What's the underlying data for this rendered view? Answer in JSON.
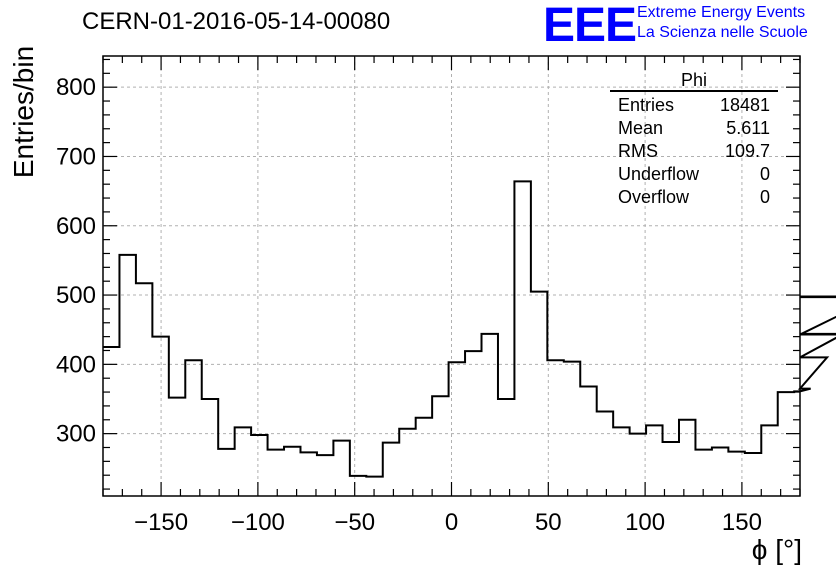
{
  "header": {
    "run_title": "CERN-01-2016-05-14-00080",
    "logo_mark": "EEE",
    "logo_line1": "Extreme Energy Events",
    "logo_line2": "La Scienza nelle Scuole",
    "brand_color": "#0000ff"
  },
  "stats_box": {
    "title": "Phi",
    "rows": [
      {
        "label": "Entries",
        "value": "18481"
      },
      {
        "label": "Mean",
        "value": "5.611"
      },
      {
        "label": "RMS",
        "value": "109.7"
      },
      {
        "label": "Underflow",
        "value": "0"
      },
      {
        "label": "Overflow",
        "value": "0"
      }
    ]
  },
  "chart_data": {
    "type": "bar",
    "style": "step-histogram",
    "xlabel": "ϕ [°]",
    "ylabel": "Entries/bin",
    "xlim": [
      -180,
      180
    ],
    "ylim": [
      210,
      845
    ],
    "bin_width": 8.5,
    "x_ticks": [
      -150,
      -100,
      -50,
      0,
      50,
      100,
      150
    ],
    "x_tick_labels": [
      "−150",
      "−100",
      "−50",
      "0",
      "50",
      "100",
      "150"
    ],
    "y_ticks": [
      300,
      400,
      500,
      600,
      700,
      800
    ],
    "y_tick_labels": [
      "300",
      "400",
      "500",
      "600",
      "700",
      "800"
    ],
    "grid": true,
    "legend": "top-right stats box",
    "values": [
      425,
      558,
      517,
      440,
      352,
      406,
      350,
      278,
      309,
      298,
      277,
      281,
      273,
      269,
      290,
      239,
      238,
      287,
      307,
      323,
      354,
      403,
      419,
      444,
      350,
      664,
      505,
      406,
      404,
      368,
      332,
      309,
      300,
      312,
      288,
      320,
      277,
      280,
      274,
      272,
      312,
      360,
      361,
      365,
      410,
      444,
      443,
      497,
      498
    ]
  }
}
